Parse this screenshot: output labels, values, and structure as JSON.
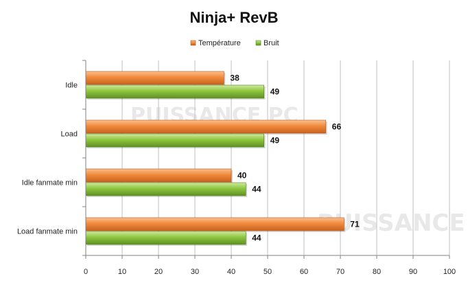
{
  "chart_data": {
    "type": "bar",
    "orientation": "horizontal",
    "title": "Ninja+ RevB",
    "categories": [
      "Idle",
      "Load",
      "Idle fanmate  min",
      "Load fanmate  min"
    ],
    "series": [
      {
        "name": "Température",
        "values": [
          38,
          66,
          40,
          71
        ],
        "color": "#f08a3c"
      },
      {
        "name": "Bruit",
        "values": [
          49,
          49,
          44,
          44
        ],
        "color": "#8ec63f"
      }
    ],
    "xlim": [
      0,
      100
    ],
    "xticks": [
      0,
      10,
      20,
      30,
      40,
      50,
      60,
      70,
      80,
      90,
      100
    ],
    "grid": true,
    "legend_position": "top-center",
    "watermark_text": "PUISSANCE PC"
  }
}
